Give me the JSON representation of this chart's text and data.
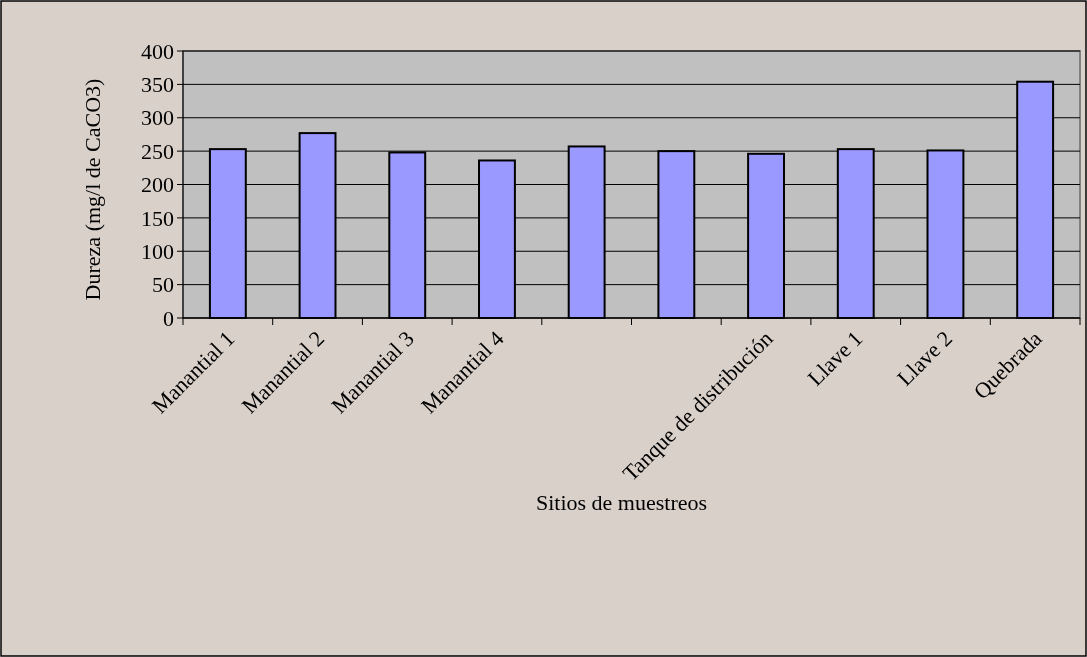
{
  "chart_data": {
    "type": "bar",
    "xlabel": "Sitios de muestreos",
    "ylabel": "Dureza (mg/l de CaCO3)",
    "categories": [
      "Manantial 1",
      "Manantial 2",
      "Manantial 3",
      "Manantial 4",
      null,
      null,
      "Tanque de distribución",
      "Llave 1",
      "Llave 2",
      "Quebrada"
    ],
    "values": [
      253,
      277,
      248,
      236,
      257,
      250,
      246,
      253,
      251,
      354
    ],
    "color": "#9999ff",
    "ylim": [
      0,
      400
    ],
    "yticks": [
      0,
      50,
      100,
      150,
      200,
      250,
      300,
      350,
      400
    ],
    "grid": "y"
  }
}
